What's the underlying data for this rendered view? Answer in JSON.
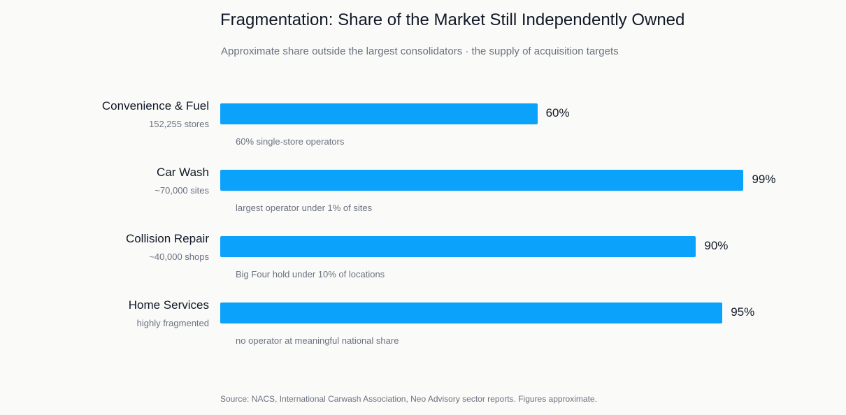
{
  "chart_data": {
    "type": "bar",
    "orientation": "horizontal",
    "title": "Fragmentation: Share of the Market Still Independently Owned",
    "subtitle": "Approximate share outside the largest consolidators · the supply of acquisition targets",
    "xlim": [
      0,
      100
    ],
    "grid": false,
    "bar_color": "#0ba2fb",
    "value_labels": [
      "60%",
      "99%",
      "90%",
      "95%"
    ],
    "categories": [
      "Convenience & Fuel",
      "Car Wash",
      "Collision Repair",
      "Home Services"
    ],
    "category_subtitles": [
      "152,255 stores",
      "~70,000 sites",
      "~40,000 shops",
      "highly fragmented"
    ],
    "values": [
      60,
      99,
      90,
      95
    ],
    "notes": [
      "60% single-store operators",
      "largest operator under 1% of sites",
      "Big Four hold under 10% of locations",
      "no operator at meaningful national share"
    ],
    "source": "Source: NACS, International Carwash Association, Neo Advisory sector reports. Figures approximate."
  }
}
